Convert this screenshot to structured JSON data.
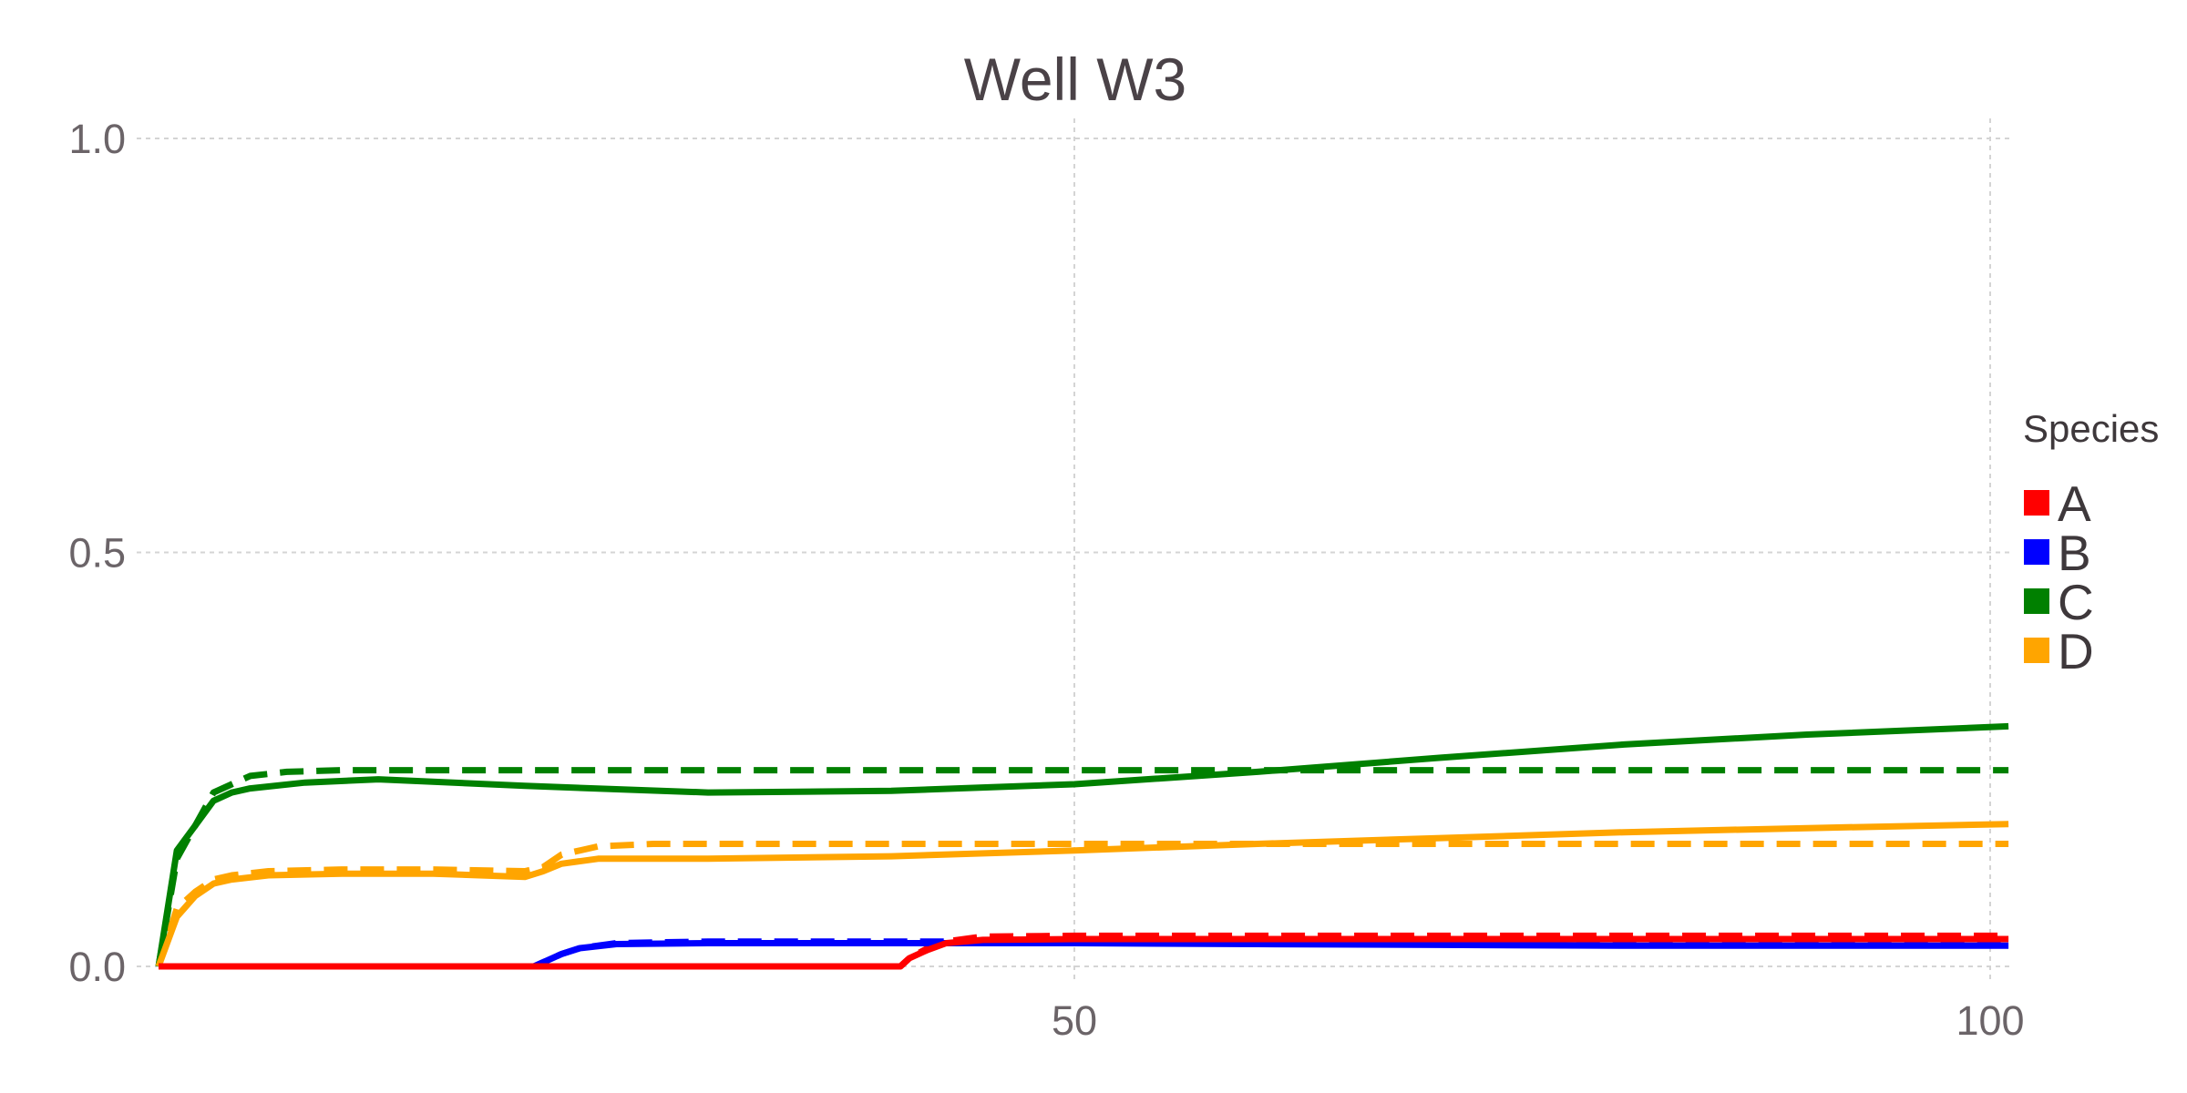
{
  "chart_data": {
    "type": "line",
    "title": "Well W3",
    "xlabel": "",
    "ylabel": "",
    "xlim": [
      0,
      101
    ],
    "ylim": [
      0,
      1
    ],
    "x_ticks": [
      50,
      100
    ],
    "x_tick_labels": [
      "50",
      "100"
    ],
    "y_ticks": [
      0.0,
      0.5,
      1.0
    ],
    "y_tick_labels": [
      "0.0",
      "0.5",
      "1.0"
    ],
    "grid": true,
    "legend": {
      "title": "Species",
      "placement": "right",
      "entries": [
        {
          "label": "A",
          "color": "#ff0000"
        },
        {
          "label": "B",
          "color": "#0000ff"
        },
        {
          "label": "C",
          "color": "#008000"
        },
        {
          "label": "D",
          "color": "#ffa500"
        }
      ]
    },
    "series": [
      {
        "species": "C",
        "style": "dashed",
        "color": "#008000",
        "x": [
          0,
          1,
          2,
          3,
          4,
          5,
          7,
          10,
          20,
          30,
          50,
          70,
          101
        ],
        "y": [
          0,
          0.13,
          0.17,
          0.21,
          0.22,
          0.23,
          0.235,
          0.237,
          0.237,
          0.237,
          0.237,
          0.237,
          0.237
        ]
      },
      {
        "species": "D",
        "style": "dashed",
        "color": "#ffa500",
        "x": [
          0,
          1,
          2,
          3,
          4,
          6,
          10,
          15,
          20,
          21,
          22,
          24,
          27,
          35,
          50,
          70,
          101
        ],
        "y": [
          0,
          0.07,
          0.09,
          0.105,
          0.11,
          0.115,
          0.117,
          0.117,
          0.115,
          0.12,
          0.135,
          0.145,
          0.148,
          0.148,
          0.148,
          0.148,
          0.148
        ]
      },
      {
        "species": "B",
        "style": "dashed",
        "color": "#0000ff",
        "x": [
          0,
          10,
          20,
          20.5,
          21,
          22,
          23,
          25,
          30,
          40,
          50,
          70,
          101
        ],
        "y": [
          0,
          0,
          0,
          0,
          0.005,
          0.015,
          0.022,
          0.028,
          0.03,
          0.03,
          0.03,
          0.03,
          0.03
        ]
      },
      {
        "species": "A",
        "style": "dashed",
        "color": "#ff0000",
        "x": [
          0,
          20,
          40,
          40.5,
          41,
          42,
          43,
          45,
          50,
          70,
          101
        ],
        "y": [
          0,
          0,
          0,
          0,
          0.01,
          0.022,
          0.03,
          0.036,
          0.037,
          0.037,
          0.037
        ]
      },
      {
        "species": "C",
        "style": "solid",
        "color": "#008000",
        "x": [
          0,
          1,
          2,
          3,
          4,
          5,
          8,
          12,
          20,
          30,
          40,
          50,
          60,
          70,
          80,
          90,
          101
        ],
        "y": [
          0,
          0.14,
          0.17,
          0.2,
          0.21,
          0.215,
          0.222,
          0.226,
          0.218,
          0.21,
          0.212,
          0.22,
          0.235,
          0.252,
          0.268,
          0.28,
          0.29
        ]
      },
      {
        "species": "D",
        "style": "solid",
        "color": "#ffa500",
        "x": [
          0,
          1,
          2,
          3,
          4,
          6,
          10,
          15,
          20,
          21,
          22,
          24,
          30,
          40,
          50,
          60,
          70,
          80,
          90,
          101
        ],
        "y": [
          0,
          0.06,
          0.085,
          0.1,
          0.105,
          0.11,
          0.112,
          0.112,
          0.108,
          0.115,
          0.124,
          0.13,
          0.13,
          0.133,
          0.14,
          0.148,
          0.155,
          0.162,
          0.167,
          0.172
        ]
      },
      {
        "species": "B",
        "style": "solid",
        "color": "#0000ff",
        "x": [
          0,
          10,
          20,
          20.5,
          21,
          22,
          23,
          25,
          30,
          40,
          50,
          60,
          70,
          80,
          90,
          101
        ],
        "y": [
          0,
          0,
          0,
          0,
          0.005,
          0.015,
          0.022,
          0.027,
          0.028,
          0.028,
          0.028,
          0.027,
          0.026,
          0.025,
          0.025,
          0.025
        ]
      },
      {
        "species": "A",
        "style": "solid",
        "color": "#ff0000",
        "x": [
          0,
          20,
          40,
          40.5,
          41,
          42,
          43,
          45,
          50,
          60,
          70,
          80,
          90,
          101
        ],
        "y": [
          0,
          0,
          0,
          0,
          0.01,
          0.02,
          0.028,
          0.032,
          0.033,
          0.033,
          0.033,
          0.033,
          0.033,
          0.033
        ]
      }
    ]
  }
}
